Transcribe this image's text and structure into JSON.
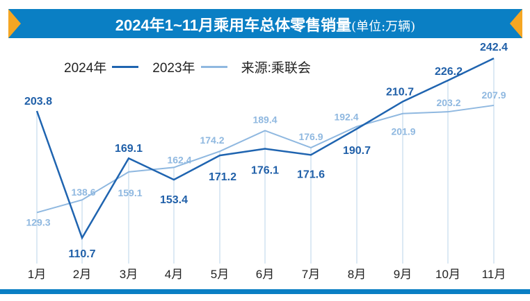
{
  "title": {
    "main": "2024年1~11月乘用车总体零售销量",
    "unit": "(单位:万辆)"
  },
  "legend": {
    "series_2024": "2024年",
    "series_2023": "2023年",
    "source": "来源:乘联会"
  },
  "colors": {
    "series_2024": "#1f64b0",
    "series_2023": "#8fb8e0",
    "bar": "#0a7fc4",
    "accent": "#f5a623"
  },
  "chart_data": {
    "type": "line",
    "title": "2024年1~11月乘用车总体零售销量(单位:万辆)",
    "categories": [
      "1月",
      "2月",
      "3月",
      "4月",
      "5月",
      "6月",
      "7月",
      "8月",
      "9月",
      "10月",
      "11月"
    ],
    "series": [
      {
        "name": "2024年",
        "values": [
          203.8,
          110.7,
          169.1,
          153.4,
          171.2,
          176.1,
          171.6,
          190.7,
          210.7,
          226.2,
          242.4
        ]
      },
      {
        "name": "2023年",
        "values": [
          129.3,
          138.6,
          159.1,
          162.4,
          174.2,
          189.4,
          176.9,
          192.4,
          201.9,
          203.2,
          207.9
        ]
      }
    ],
    "xlabel": "",
    "ylabel": "",
    "grid": false,
    "legend_position": "top-left"
  }
}
